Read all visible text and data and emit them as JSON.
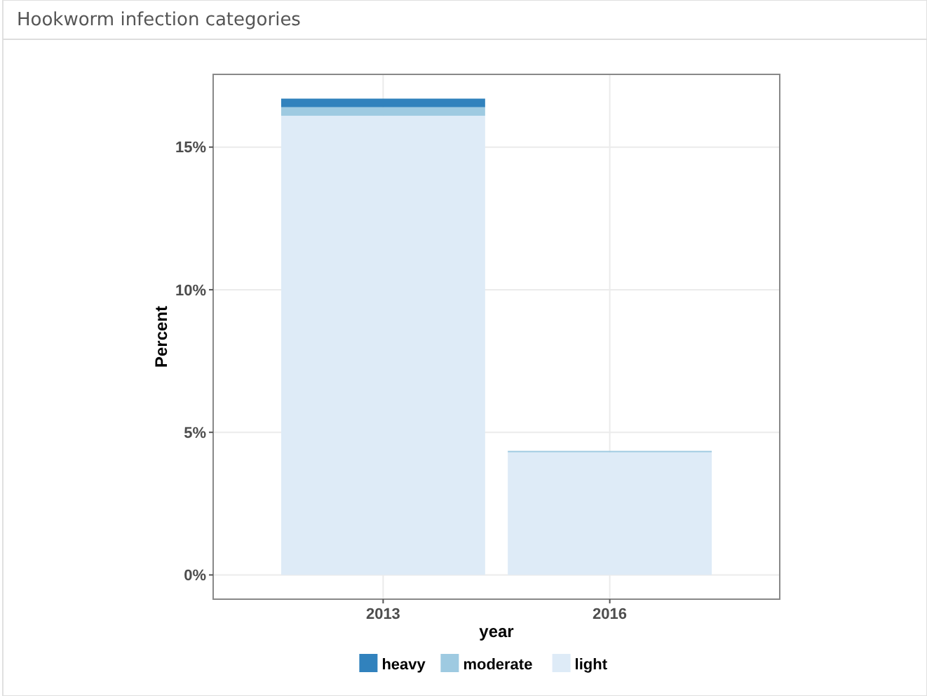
{
  "chart_data": {
    "type": "bar",
    "title": "Hookworm infection categories",
    "xlabel": "year",
    "ylabel": "Percent",
    "categories": [
      "2013",
      "2016"
    ],
    "stacked": true,
    "series": [
      {
        "name": "light",
        "color": "#deebf7",
        "values": [
          16.1,
          4.3
        ]
      },
      {
        "name": "moderate",
        "color": "#9ecae1",
        "values": [
          0.3,
          0.05
        ]
      },
      {
        "name": "heavy",
        "color": "#3182bd",
        "values": [
          0.3,
          0
        ]
      }
    ],
    "ylim": [
      -0.85,
      17.55
    ],
    "yticks": [
      {
        "value": 0,
        "label": "0%"
      },
      {
        "value": 5,
        "label": "5%"
      },
      {
        "value": 10,
        "label": "10%"
      },
      {
        "value": 15,
        "label": "15%"
      }
    ],
    "grid": true,
    "legend": "bottom"
  }
}
